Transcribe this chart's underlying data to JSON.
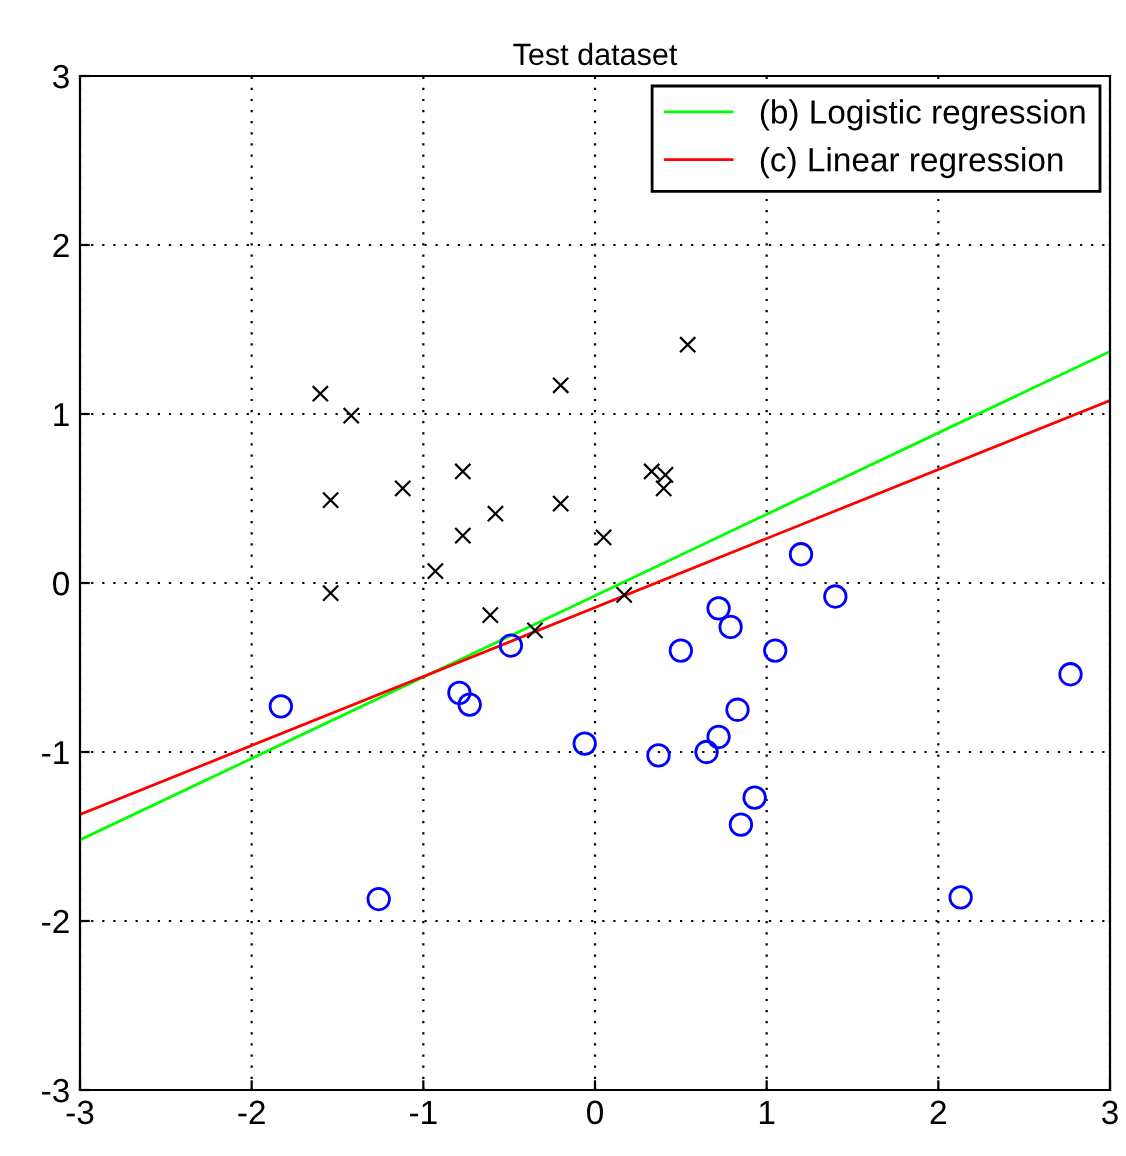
{
  "chart_data": {
    "type": "scatter",
    "title": "Test dataset",
    "xlim": [
      -3,
      3
    ],
    "ylim": [
      -3,
      3
    ],
    "xticks": [
      -3,
      -2,
      -1,
      0,
      1,
      2,
      3
    ],
    "yticks": [
      -3,
      -2,
      -1,
      0,
      1,
      2,
      3
    ],
    "grid": true,
    "legend": "top right",
    "series": [
      {
        "marker": "cross",
        "color": "#000000",
        "x": [
          -1.6,
          -1.42,
          -1.54,
          -1.54,
          -1.12,
          -0.77,
          -0.77,
          -0.93,
          -0.58,
          -0.61,
          -0.35,
          -0.2,
          -0.2,
          0.05,
          0.17,
          0.33,
          0.41,
          0.4,
          0.54
        ],
        "values": [
          1.12,
          0.99,
          0.49,
          -0.06,
          0.56,
          0.66,
          0.28,
          0.07,
          0.41,
          -0.19,
          -0.28,
          0.47,
          1.17,
          0.27,
          -0.07,
          0.66,
          0.64,
          0.56,
          1.41
        ]
      },
      {
        "marker": "circle",
        "color": "#0000ff",
        "x": [
          -1.83,
          -1.26,
          -0.79,
          -0.73,
          -0.49,
          -0.06,
          1.2,
          1.4,
          0.72,
          0.79,
          0.5,
          1.05,
          0.83,
          0.72,
          0.65,
          0.37,
          0.93,
          0.85,
          2.13,
          2.77
        ],
        "values": [
          -0.73,
          -1.87,
          -0.65,
          -0.72,
          -0.37,
          -0.95,
          0.17,
          -0.08,
          -0.15,
          -0.26,
          -0.4,
          -0.4,
          -0.75,
          -0.91,
          -1.0,
          -1.02,
          -1.27,
          -1.43,
          -1.86,
          -0.54
        ]
      },
      {
        "type": "line",
        "name": "(b) Logistic regression",
        "color": "#00ff00",
        "x": [
          -3,
          3
        ],
        "values": [
          -1.52,
          1.37
        ]
      },
      {
        "type": "line",
        "name": "(c) Linear regression",
        "color": "#ff0000",
        "x": [
          -3,
          3
        ],
        "values": [
          -1.37,
          1.08
        ]
      }
    ]
  }
}
